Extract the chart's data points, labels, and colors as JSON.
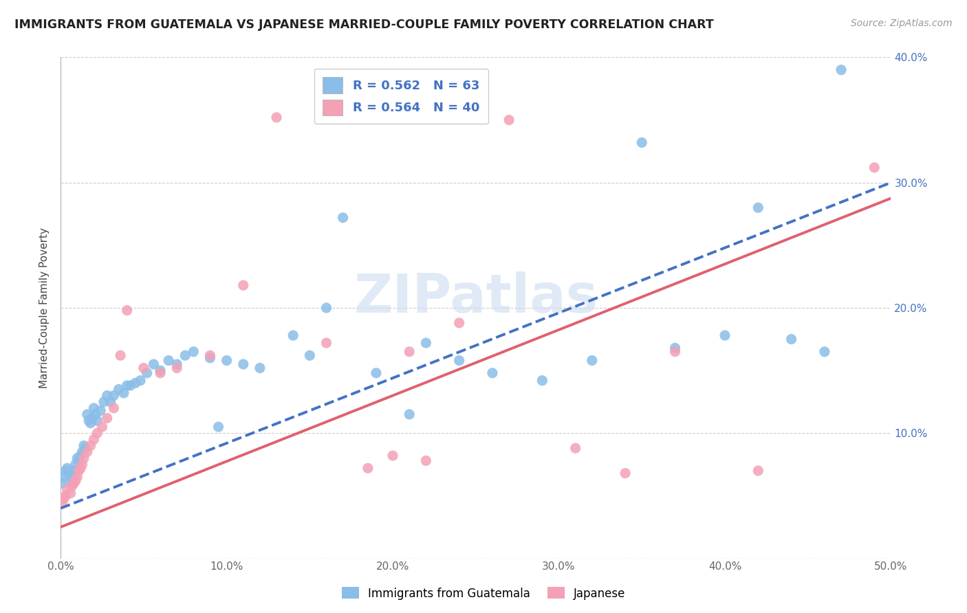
{
  "title": "IMMIGRANTS FROM GUATEMALA VS JAPANESE MARRIED-COUPLE FAMILY POVERTY CORRELATION CHART",
  "source": "Source: ZipAtlas.com",
  "xlabel": "",
  "ylabel": "Married-Couple Family Poverty",
  "xlim": [
    0.0,
    0.5
  ],
  "ylim": [
    0.0,
    0.4
  ],
  "xticks": [
    0.0,
    0.1,
    0.2,
    0.3,
    0.4,
    0.5
  ],
  "yticks": [
    0.0,
    0.1,
    0.2,
    0.3,
    0.4
  ],
  "xtick_labels": [
    "0.0%",
    "10.0%",
    "20.0%",
    "30.0%",
    "40.0%",
    "50.0%"
  ],
  "left_ytick_labels": [
    "",
    "",
    "",
    "",
    ""
  ],
  "right_ytick_labels": [
    "",
    "10.0%",
    "20.0%",
    "30.0%",
    "40.0%"
  ],
  "series1_label": "Immigrants from Guatemala",
  "series2_label": "Japanese",
  "series1_color": "#8abde8",
  "series2_color": "#f4a0b5",
  "series1_line_color": "#4472c4",
  "series2_line_color": "#e06070",
  "series1_R": "0.562",
  "series1_N": "63",
  "series2_R": "0.564",
  "series2_N": "40",
  "legend_R_color": "#4472c4",
  "watermark": "ZIPatlas",
  "series1_x": [
    0.001,
    0.002,
    0.003,
    0.004,
    0.005,
    0.006,
    0.007,
    0.008,
    0.009,
    0.01,
    0.011,
    0.012,
    0.013,
    0.014,
    0.015,
    0.016,
    0.017,
    0.018,
    0.019,
    0.02,
    0.021,
    0.022,
    0.024,
    0.026,
    0.028,
    0.03,
    0.032,
    0.035,
    0.038,
    0.04,
    0.042,
    0.045,
    0.048,
    0.052,
    0.056,
    0.06,
    0.065,
    0.07,
    0.075,
    0.08,
    0.09,
    0.095,
    0.1,
    0.11,
    0.12,
    0.14,
    0.15,
    0.16,
    0.17,
    0.19,
    0.21,
    0.22,
    0.24,
    0.26,
    0.29,
    0.32,
    0.35,
    0.37,
    0.4,
    0.42,
    0.44,
    0.46,
    0.47
  ],
  "series1_y": [
    0.06,
    0.065,
    0.07,
    0.072,
    0.068,
    0.065,
    0.06,
    0.07,
    0.075,
    0.08,
    0.078,
    0.082,
    0.085,
    0.09,
    0.088,
    0.115,
    0.11,
    0.108,
    0.112,
    0.12,
    0.115,
    0.11,
    0.118,
    0.125,
    0.13,
    0.125,
    0.13,
    0.135,
    0.132,
    0.138,
    0.138,
    0.14,
    0.142,
    0.148,
    0.155,
    0.15,
    0.158,
    0.155,
    0.162,
    0.165,
    0.16,
    0.105,
    0.158,
    0.155,
    0.152,
    0.178,
    0.162,
    0.2,
    0.272,
    0.148,
    0.115,
    0.172,
    0.158,
    0.148,
    0.142,
    0.158,
    0.332,
    0.168,
    0.178,
    0.28,
    0.175,
    0.165,
    0.39
  ],
  "series2_x": [
    0.001,
    0.002,
    0.003,
    0.004,
    0.006,
    0.007,
    0.008,
    0.009,
    0.01,
    0.011,
    0.012,
    0.013,
    0.014,
    0.016,
    0.018,
    0.02,
    0.022,
    0.025,
    0.028,
    0.032,
    0.036,
    0.04,
    0.05,
    0.06,
    0.07,
    0.09,
    0.11,
    0.13,
    0.16,
    0.185,
    0.2,
    0.21,
    0.22,
    0.24,
    0.27,
    0.31,
    0.34,
    0.37,
    0.42,
    0.49
  ],
  "series2_y": [
    0.045,
    0.048,
    0.05,
    0.055,
    0.052,
    0.058,
    0.06,
    0.062,
    0.065,
    0.07,
    0.072,
    0.075,
    0.08,
    0.085,
    0.09,
    0.095,
    0.1,
    0.105,
    0.112,
    0.12,
    0.162,
    0.198,
    0.152,
    0.148,
    0.152,
    0.162,
    0.218,
    0.352,
    0.172,
    0.072,
    0.082,
    0.165,
    0.078,
    0.188,
    0.35,
    0.088,
    0.068,
    0.165,
    0.07,
    0.312
  ]
}
